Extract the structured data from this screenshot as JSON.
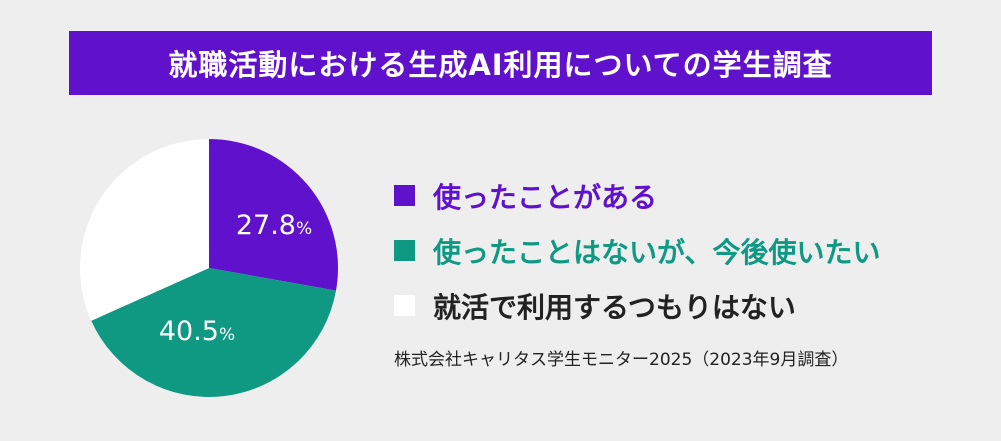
{
  "title": "就職活動における生成AI利用についての学生調査",
  "source": "株式会社キャリタス学生モニター2025（2023年9月調査）",
  "colors": {
    "background": "#eeeeee",
    "title_bar": "#5f11cc",
    "used": "#5f11cc",
    "not_yet": "#0f9983",
    "no_intent": "#ffffff",
    "label_text": "#222222"
  },
  "chart_data": {
    "type": "pie",
    "title": "就職活動における生成AI利用についての学生調査",
    "slices": [
      {
        "label": "使ったことがある",
        "value": 27.8,
        "value_text": "27.8",
        "unit": "%",
        "color": "#5f11cc",
        "label_color": "#5f11cc"
      },
      {
        "label": "使ったことはないが、今後使いたい",
        "value": 40.5,
        "value_text": "40.5",
        "unit": "%",
        "color": "#0f9983",
        "label_color": "#0f9983"
      },
      {
        "label": "就活で利用するつもりはない",
        "value": 31.7,
        "value_text": "",
        "unit": "",
        "color": "#ffffff",
        "label_color": "#222222"
      }
    ],
    "legend_position": "right"
  }
}
